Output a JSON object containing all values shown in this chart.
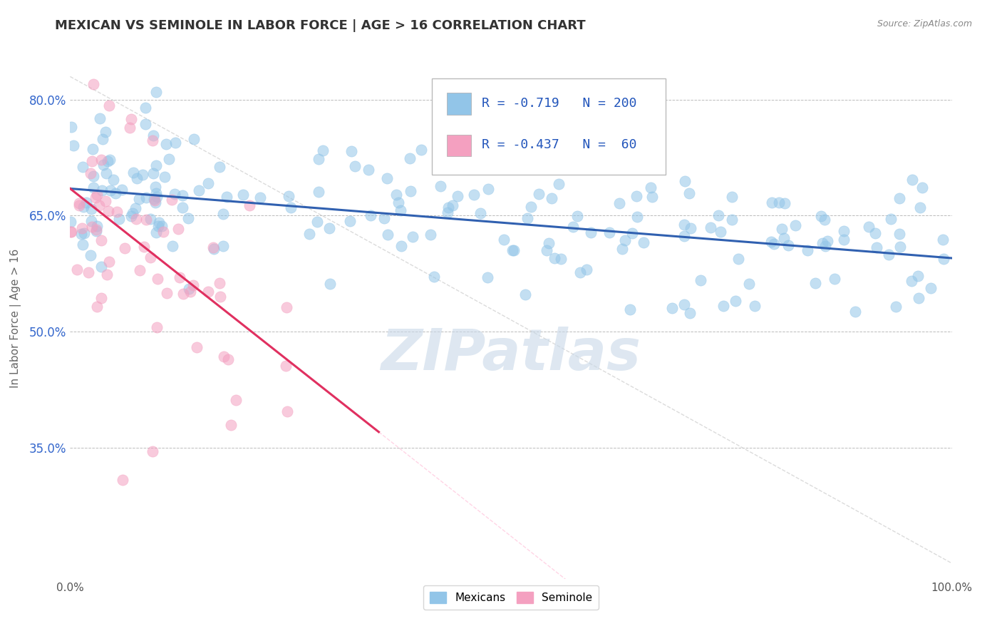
{
  "title": "MEXICAN VS SEMINOLE IN LABOR FORCE | AGE > 16 CORRELATION CHART",
  "source_text": "Source: ZipAtlas.com",
  "ylabel": "In Labor Force | Age > 16",
  "xlim": [
    0.0,
    1.0
  ],
  "ylim": [
    0.18,
    0.855
  ],
  "x_ticks": [
    0.0,
    0.2,
    0.4,
    0.6,
    0.8,
    1.0
  ],
  "x_tick_labels": [
    "0.0%",
    "",
    "",
    "",
    "",
    "100.0%"
  ],
  "y_ticks": [
    0.35,
    0.5,
    0.65,
    0.8
  ],
  "y_tick_labels": [
    "35.0%",
    "50.0%",
    "65.0%",
    "80.0%"
  ],
  "blue_color": "#92C5E8",
  "pink_color": "#F4A0C0",
  "blue_line_color": "#3060B0",
  "pink_line_color": "#E0306080",
  "pink_line_solid_color": "#E03060",
  "grid_color": "#BBBBBB",
  "background_color": "#FFFFFF",
  "watermark_text": "ZIPatlas",
  "watermark_color": "#C8D8E8",
  "legend_R_blue": "-0.719",
  "legend_N_blue": "200",
  "legend_R_pink": "-0.437",
  "legend_N_pink": "60",
  "legend_label_blue": "Mexicans",
  "legend_label_pink": "Seminole",
  "title_fontsize": 13,
  "blue_scatter_seed": 42,
  "pink_scatter_seed": 123,
  "blue_N": 200,
  "pink_N": 60,
  "blue_intercept": 0.685,
  "blue_slope": -0.09,
  "pink_intercept": 0.685,
  "pink_slope": -0.9
}
